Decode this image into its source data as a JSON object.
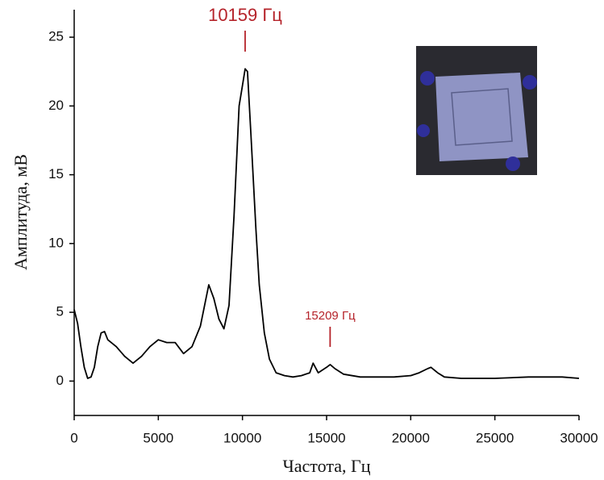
{
  "chart_data": {
    "type": "line",
    "x_label": "Частота, Гц",
    "y_label": "Амплитуда, мВ",
    "xlim": [
      0,
      30000
    ],
    "xticks": [
      0,
      5000,
      10000,
      15000,
      20000,
      25000,
      30000
    ],
    "ylim": [
      -2.5,
      27
    ],
    "yticks": [
      0,
      5,
      10,
      15,
      20,
      25
    ],
    "series": [
      {
        "color": "#000000",
        "x": [
          0,
          200,
          400,
          600,
          800,
          1000,
          1200,
          1400,
          1600,
          1800,
          2000,
          2500,
          3000,
          3500,
          4000,
          4500,
          5000,
          5500,
          6000,
          6500,
          7000,
          7500,
          8000,
          8300,
          8600,
          8900,
          9200,
          9500,
          9800,
          10000,
          10159,
          10300,
          10500,
          10800,
          11000,
          11300,
          11600,
          12000,
          12500,
          13000,
          13500,
          14000,
          14200,
          14500,
          15000,
          15209,
          15500,
          16000,
          17000,
          18000,
          19000,
          20000,
          20500,
          21000,
          21200,
          21600,
          22000,
          23000,
          25000,
          27000,
          29000,
          30000
        ],
        "values": [
          5.2,
          4.2,
          2.5,
          1.0,
          0.2,
          0.3,
          1.0,
          2.5,
          3.5,
          3.6,
          3.0,
          2.5,
          1.8,
          1.3,
          1.8,
          2.5,
          3.0,
          2.8,
          2.8,
          2.0,
          2.5,
          4.0,
          7.0,
          6.0,
          4.5,
          3.8,
          5.5,
          12,
          20,
          21.5,
          22.7,
          22.5,
          18,
          11,
          7,
          3.5,
          1.6,
          0.6,
          0.4,
          0.3,
          0.4,
          0.6,
          1.3,
          0.6,
          1.0,
          1.2,
          0.9,
          0.5,
          0.3,
          0.3,
          0.3,
          0.4,
          0.6,
          0.9,
          1.0,
          0.6,
          0.3,
          0.2,
          0.2,
          0.3,
          0.3,
          0.2
        ]
      }
    ],
    "annotations": [
      {
        "label": "10159 Гц",
        "x": 10159,
        "color": "#b5232a"
      },
      {
        "label": "15209 Гц",
        "x": 15209,
        "color": "#b5232a"
      }
    ]
  }
}
